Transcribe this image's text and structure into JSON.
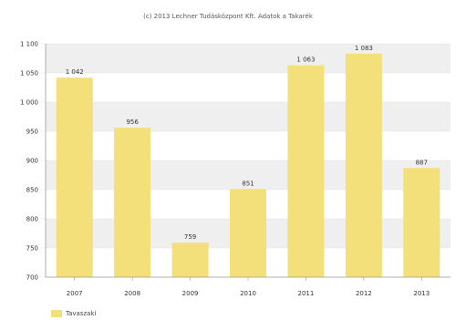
{
  "caption": "(c) 2013 Lechner Tudásközpont Kft. Adatok a Takarék",
  "legend": {
    "label": "Tavaszaki",
    "color": "#f4e07a"
  },
  "colors": {
    "bar": "#f4e07a",
    "band": "#efefef",
    "axis": "#9a9a9a",
    "text": "#333333"
  },
  "chart_data": {
    "type": "bar",
    "categories": [
      "2007",
      "2008",
      "2009",
      "2010",
      "2011",
      "2012",
      "2013"
    ],
    "series": [
      {
        "values": [
          1042,
          956,
          759,
          851,
          1063,
          1083,
          887
        ],
        "labels": [
          "1 042",
          "956",
          "759",
          "851",
          "1 063",
          "1 083",
          "887"
        ]
      }
    ],
    "ylim": [
      700,
      1100
    ],
    "yticks": [
      700,
      750,
      800,
      850,
      900,
      950,
      1000,
      1050,
      1100
    ],
    "ytick_labels": [
      "700",
      "750",
      "800",
      "850",
      "900",
      "950",
      "1 000",
      "1 050",
      "1 100"
    ],
    "grid": true,
    "legend_position": "bottom-left"
  }
}
